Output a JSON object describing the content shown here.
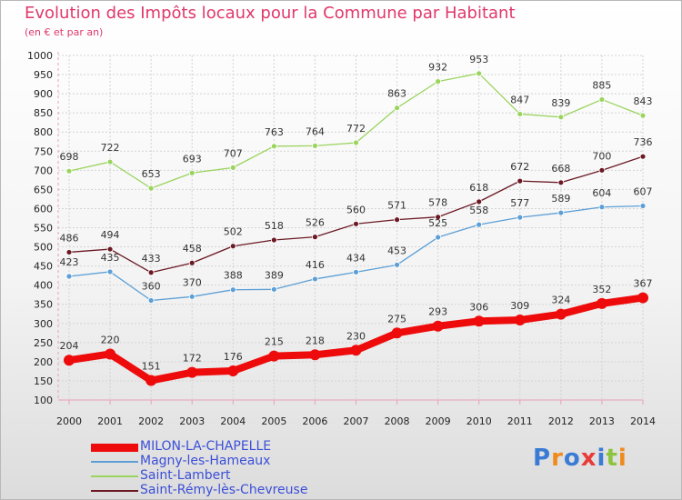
{
  "title": "Evolution des Impôts locaux pour la Commune par Habitant",
  "subtitle": "(en € et par an)",
  "logo": {
    "text": "Proxiti",
    "letter_colors": [
      "#3a7bd5",
      "#f08a1c",
      "#3a7bd5",
      "#e83c3c",
      "#3a7bd5",
      "#8bc43f",
      "#f08a1c"
    ]
  },
  "colors": {
    "axis": "#e9a0b4",
    "grid": "#d3d3d3",
    "title": "#e0386a",
    "legend_text": "#3b4fd8"
  },
  "chart_data": {
    "type": "line",
    "x": [
      "2000",
      "2001",
      "2002",
      "2003",
      "2004",
      "2005",
      "2006",
      "2007",
      "2008",
      "2009",
      "2010",
      "2011",
      "2012",
      "2013",
      "2014"
    ],
    "ylim": [
      100,
      1000
    ],
    "yticks": [
      100,
      150,
      200,
      250,
      300,
      350,
      400,
      450,
      500,
      550,
      600,
      650,
      700,
      750,
      800,
      850,
      900,
      950,
      1000
    ],
    "grid": true,
    "legend_position": "bottom-left",
    "series": [
      {
        "name": "Saint-Lambert",
        "color": "#9ad45e",
        "values": [
          698,
          722,
          653,
          693,
          707,
          763,
          764,
          772,
          863,
          932,
          953,
          847,
          839,
          885,
          843
        ]
      },
      {
        "name": "Saint-Rémy-lès-Chevreuse",
        "color": "#6b1a24",
        "values": [
          486,
          494,
          433,
          458,
          502,
          518,
          526,
          560,
          571,
          578,
          618,
          672,
          668,
          700,
          736
        ]
      },
      {
        "name": "Magny-les-Hameaux",
        "color": "#5c9fd6",
        "values": [
          423,
          435,
          360,
          370,
          388,
          389,
          416,
          434,
          453,
          525,
          558,
          577,
          589,
          604,
          607
        ]
      },
      {
        "name": "MILON-LA-CHAPELLE",
        "color": "#ee0b0b",
        "highlight": true,
        "values": [
          204,
          220,
          151,
          172,
          176,
          215,
          218,
          230,
          275,
          293,
          306,
          309,
          324,
          352,
          367
        ]
      }
    ],
    "legend": [
      "MILON-LA-CHAPELLE",
      "Magny-les-Hameaux",
      "Saint-Lambert",
      "Saint-Rémy-lès-Chevreuse"
    ]
  }
}
